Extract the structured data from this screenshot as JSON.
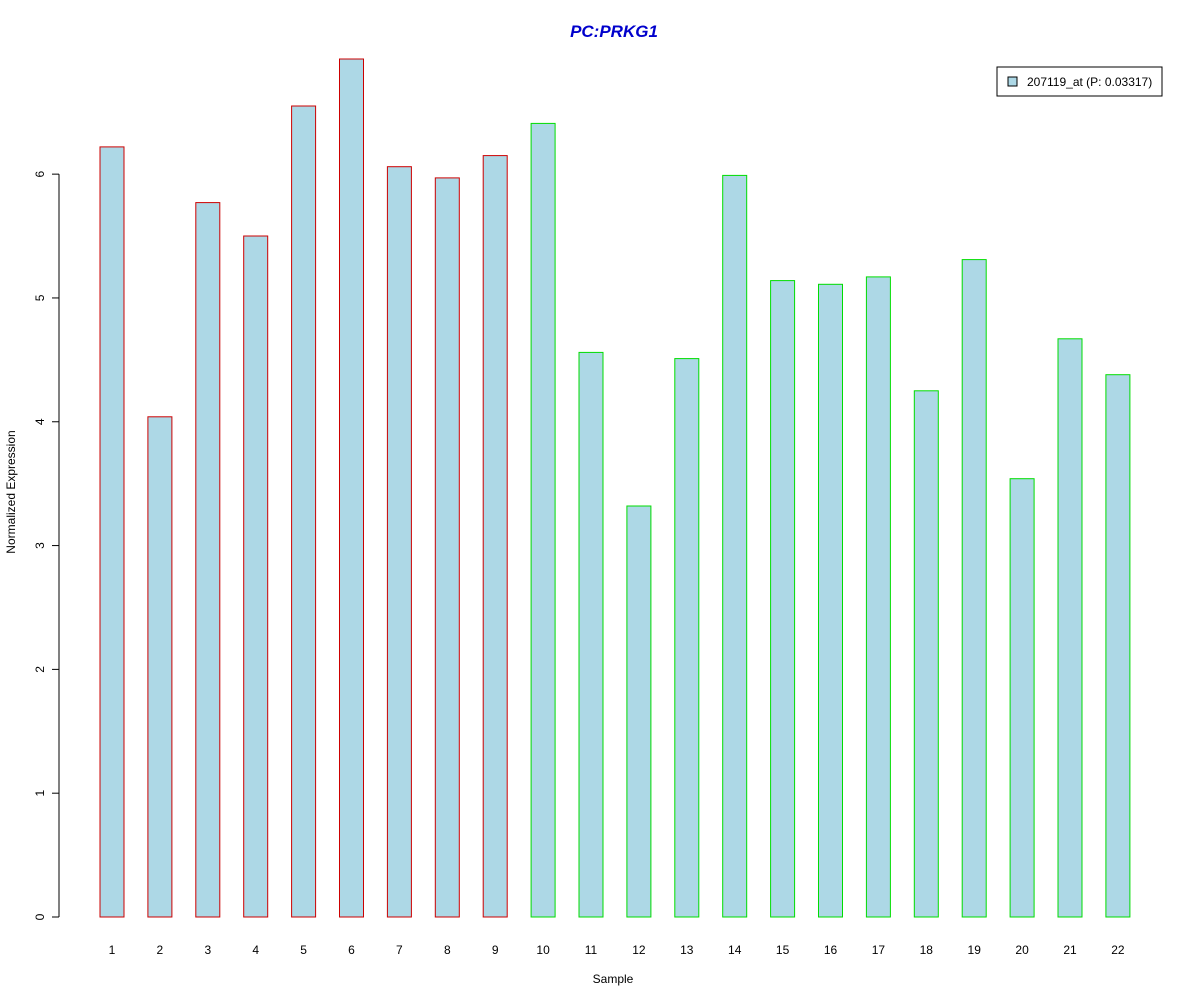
{
  "chart_data": {
    "type": "bar",
    "title": "PC:PRKG1",
    "xlabel": "Sample",
    "ylabel": "Normalized Expression",
    "categories": [
      "1",
      "2",
      "3",
      "4",
      "5",
      "6",
      "7",
      "8",
      "9",
      "10",
      "11",
      "12",
      "13",
      "14",
      "15",
      "16",
      "17",
      "18",
      "19",
      "20",
      "21",
      "22"
    ],
    "series": [
      {
        "name": "207119_at (P: 0.03317)",
        "values": [
          6.22,
          4.04,
          5.77,
          5.5,
          6.55,
          6.93,
          6.06,
          5.97,
          6.15,
          6.41,
          4.56,
          3.32,
          4.51,
          5.99,
          5.14,
          5.11,
          5.17,
          4.25,
          5.31,
          3.54,
          4.67,
          4.38
        ]
      }
    ],
    "group_of_bar": [
      "a",
      "a",
      "a",
      "a",
      "a",
      "a",
      "a",
      "a",
      "a",
      "b",
      "b",
      "b",
      "b",
      "b",
      "b",
      "b",
      "b",
      "b",
      "b",
      "b",
      "b",
      "b"
    ],
    "ylim": [
      0,
      6.93
    ],
    "yticks": [
      0,
      1,
      2,
      3,
      4,
      5,
      6
    ],
    "grid": false,
    "legend_position": "top-right",
    "colors": {
      "bar_fill": "#add8e6",
      "border_group_a": "#cc0000",
      "border_group_b": "#00dd00",
      "title": "#0000cc",
      "axis": "#000000"
    }
  }
}
